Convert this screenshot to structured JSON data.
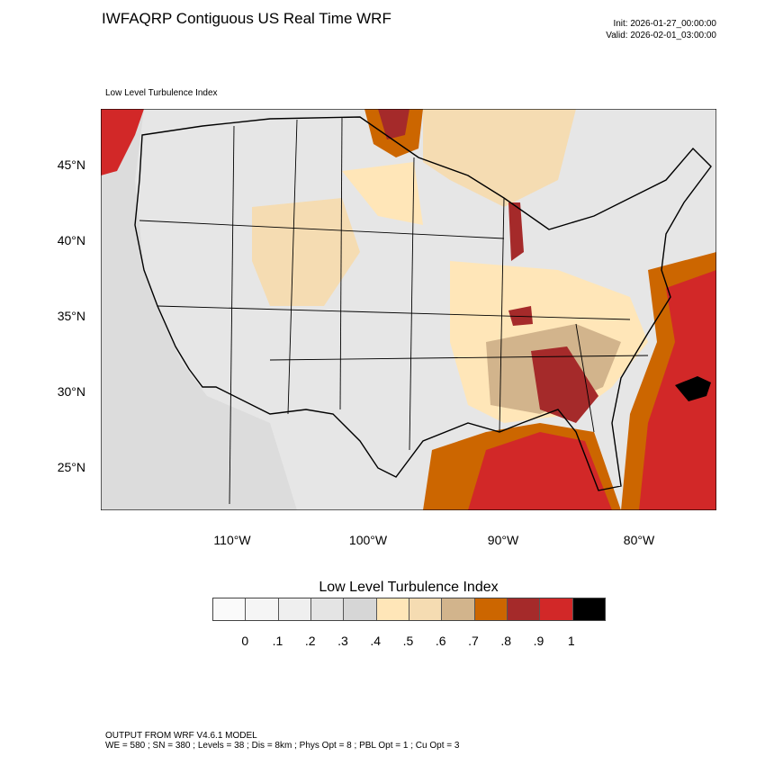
{
  "header": {
    "title": "IWFAQRP Contiguous US Real Time WRF",
    "init": "Init: 2026-01-27_00:00:00",
    "valid": "Valid: 2026-02-01_03:00:00",
    "field_label": "Low Level Turbulence Index"
  },
  "map": {
    "lat_labels": [
      "45°N",
      "40°N",
      "35°N",
      "30°N",
      "25°N"
    ],
    "lon_labels": [
      "110°W",
      "100°W",
      "90°W",
      "80°W"
    ]
  },
  "colorbar": {
    "title": "Low Level Turbulence Index",
    "colors": [
      "#fafafa",
      "#f5f5f5",
      "#efefef",
      "#e4e4e4",
      "#d6d6d6",
      "#ffe6b8",
      "#f5dcb2",
      "#d2b48c",
      "#cc6600",
      "#a52a2a",
      "#d22828",
      "#000000"
    ],
    "labels": [
      "0",
      ".1",
      ".2",
      ".3",
      ".4",
      ".5",
      ".6",
      ".7",
      ".8",
      ".9",
      "1"
    ]
  },
  "footer": {
    "line1": "OUTPUT FROM WRF V4.6.1 MODEL",
    "line2": "WE = 580 ; SN = 380 ; Levels = 38 ; Dis = 8km ; Phys Opt = 8 ; PBL Opt = 1 ; Cu Opt = 3"
  }
}
